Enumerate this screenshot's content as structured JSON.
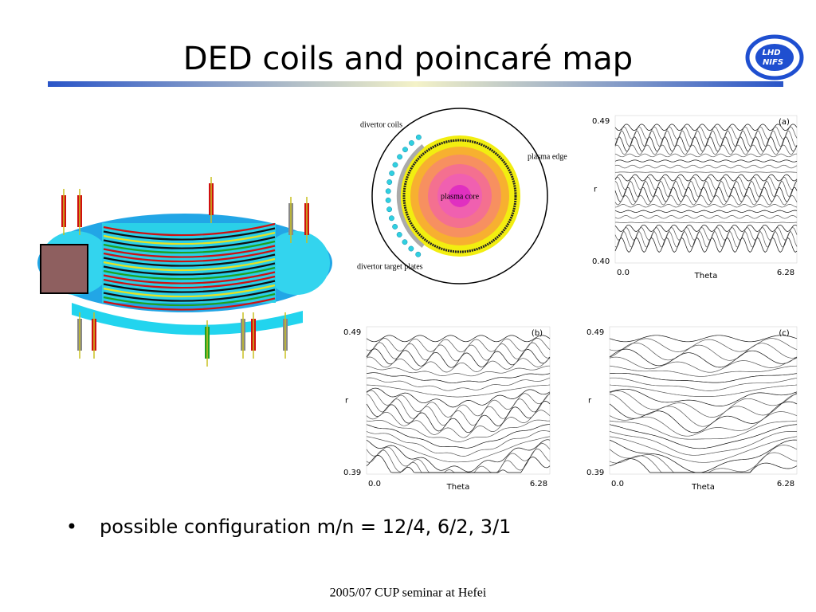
{
  "header": {
    "title": "DED coils and poincaré map",
    "logo": [
      "LHD",
      "NIFS"
    ]
  },
  "figures": {
    "cross_section": {
      "labels": [
        "divertor coils",
        "plasma edge",
        "plasma core",
        "divertor target plates"
      ]
    },
    "poincare": [
      {
        "panel": "(a)",
        "r_max": "0.49",
        "r_min": "0.40",
        "y_label": "r",
        "x_min": "0.0",
        "x_max": "6.28",
        "x_label": "Theta"
      },
      {
        "panel": "(b)",
        "r_max": "0.49",
        "r_min": "0.39",
        "y_label": "r",
        "x_min": "0.0",
        "x_max": "6.28",
        "x_label": "Theta"
      },
      {
        "panel": "(c)",
        "r_max": "0.49",
        "r_min": "0.39",
        "y_label": "r",
        "x_min": "0.0",
        "x_max": "6.28",
        "x_label": "Theta"
      }
    ]
  },
  "bullets": [
    "possible configuration m/n = 12/4, 6/2, 3/1"
  ],
  "footer": "2005/07 CUP seminar at Hefei"
}
